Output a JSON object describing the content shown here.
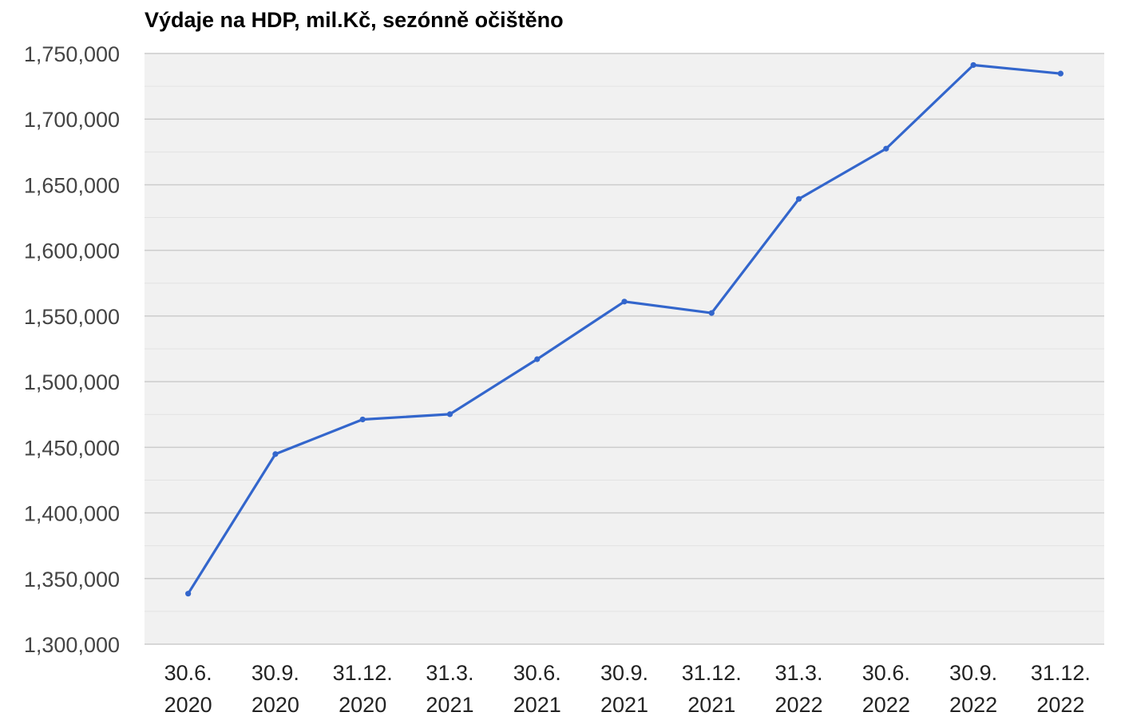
{
  "chart_data": {
    "type": "line",
    "title": "Výdaje na HDP, mil.Kč, sezónně očištěno",
    "xlabel": "",
    "ylabel": "",
    "categories": [
      [
        "30.6.",
        "2020"
      ],
      [
        "30.9.",
        "2020"
      ],
      [
        "31.12.",
        "2020"
      ],
      [
        "31.3.",
        "2021"
      ],
      [
        "30.6.",
        "2021"
      ],
      [
        "30.9.",
        "2021"
      ],
      [
        "31.12.",
        "2021"
      ],
      [
        "31.3.",
        "2022"
      ],
      [
        "30.6.",
        "2022"
      ],
      [
        "30.9.",
        "2022"
      ],
      [
        "31.12.",
        "2022"
      ]
    ],
    "series": [
      {
        "values": [
          1338500,
          1444800,
          1471200,
          1475200,
          1517100,
          1561000,
          1552300,
          1639200,
          1677500,
          1741200,
          1734700
        ],
        "color": "#3366cc"
      }
    ],
    "ylim": [
      1300000,
      1750000
    ],
    "yticks": [
      1300000,
      1350000,
      1400000,
      1450000,
      1500000,
      1550000,
      1600000,
      1650000,
      1700000,
      1750000
    ],
    "ytick_labels": [
      "1,300,000",
      "1,350,000",
      "1,400,000",
      "1,450,000",
      "1,500,000",
      "1,550,000",
      "1,600,000",
      "1,650,000",
      "1,700,000",
      "1,750,000"
    ],
    "grid": true,
    "minor_grid": true,
    "plot_background": "#f1f1f1",
    "grid_color": "#cccccc",
    "minor_grid_color": "#e2e2e2",
    "legend": "none"
  }
}
